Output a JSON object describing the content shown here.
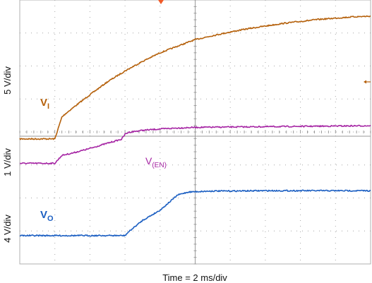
{
  "chart_data": {
    "type": "line",
    "title": "",
    "xlabel": "Time = 2 ms/div",
    "time_per_div_ms": 2,
    "x_divisions": 10,
    "y_divisions": 8,
    "grid": true,
    "colors": {
      "vi": "#b5610c",
      "ven": "#a626a4",
      "vo": "#1c5fc2",
      "grid": "#a6a6a6",
      "trigger_marker": "#f05a28"
    },
    "vertical_scales": [
      {
        "id": "vi-scale",
        "label": "5 V/div"
      },
      {
        "id": "ven-scale",
        "label": "1 V/div"
      },
      {
        "id": "vo-scale",
        "label": "4 V/div"
      }
    ],
    "series": [
      {
        "id": "vi",
        "label_main": "V",
        "label_sub": "I",
        "x_div": [
          0,
          1.0,
          1.1,
          1.2,
          1.3,
          1.5,
          2.0,
          2.5,
          3.0,
          3.5,
          4.0,
          4.5,
          5.0,
          5.5,
          6.0,
          6.5,
          7.0,
          7.5,
          8.0,
          8.5,
          9.0,
          9.5,
          10.0
        ],
        "y_div": [
          3.79,
          3.79,
          4.12,
          4.45,
          4.55,
          4.72,
          5.13,
          5.52,
          5.85,
          6.14,
          6.4,
          6.6,
          6.8,
          6.92,
          7.03,
          7.13,
          7.21,
          7.29,
          7.35,
          7.41,
          7.45,
          7.49,
          7.51
        ]
      },
      {
        "id": "ven",
        "label_main": "V",
        "label_sub": "(EN)",
        "x_div": [
          0,
          1.0,
          1.2,
          1.5,
          2.0,
          2.5,
          2.9,
          3.0,
          3.1,
          3.5,
          4.0,
          4.5,
          5.0,
          6.0,
          7.0,
          8.0,
          9.0,
          10.0
        ],
        "y_div": [
          3.05,
          3.05,
          3.29,
          3.36,
          3.5,
          3.66,
          3.78,
          3.93,
          3.99,
          4.05,
          4.09,
          4.12,
          4.14,
          4.15,
          4.16,
          4.17,
          4.18,
          4.19
        ]
      },
      {
        "id": "vo",
        "label_main": "V",
        "label_sub": "O",
        "x_div": [
          0,
          3.0,
          3.1,
          3.5,
          4.0,
          4.5,
          4.8,
          5.0,
          5.5,
          6.0,
          7.0,
          8.0,
          9.0,
          10.0
        ],
        "y_div": [
          0.86,
          0.86,
          0.97,
          1.32,
          1.63,
          2.09,
          2.18,
          2.19,
          2.21,
          2.21,
          2.22,
          2.22,
          2.22,
          2.22
        ]
      }
    ]
  }
}
